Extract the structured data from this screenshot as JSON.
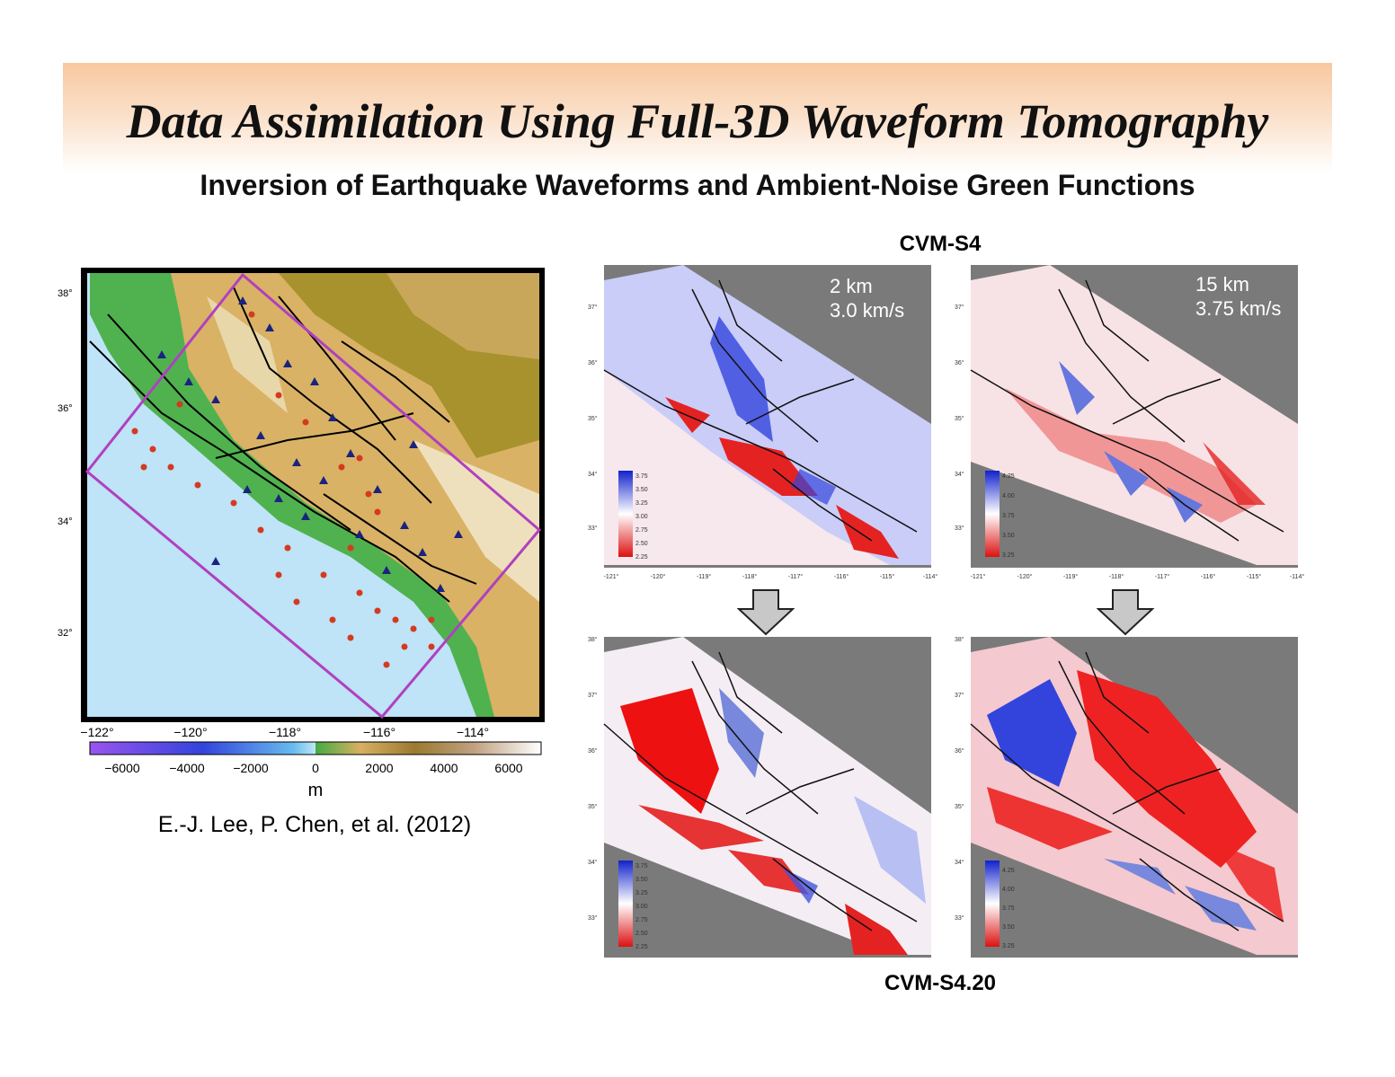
{
  "title": "Data Assimilation Using Full-3D Waveform Tomography",
  "subtitle": "Inversion of Earthquake Waveforms and Ambient-Noise Green Functions",
  "top_label": "CVM-S4",
  "bottom_label": "CVM-S4.20",
  "credit": "E.-J. Lee, P. Chen, et al. (2012)",
  "map": {
    "lat_ticks": [
      "38°",
      "36°",
      "34°",
      "32°"
    ],
    "lon_ticks": [
      "−122°",
      "−120°",
      "−118°",
      "−116°",
      "−114°"
    ],
    "colorbar_ticks": [
      "−6000",
      "−4000",
      "−2000",
      "0",
      "2000",
      "4000",
      "6000"
    ],
    "colorbar_unit": "m"
  },
  "panels": {
    "top_left": {
      "depth": "2 km",
      "velocity": "3.0 km/s",
      "scale": [
        "3.75",
        "3.50",
        "3.25",
        "3.00",
        "2.75",
        "2.50",
        "2.25"
      ]
    },
    "top_right": {
      "depth": "15 km",
      "velocity": "3.75 km/s",
      "scale": [
        "4.25",
        "4.00",
        "3.75",
        "3.50",
        "3.25"
      ]
    },
    "bottom_left": {
      "scale": [
        "3.75",
        "3.50",
        "3.25",
        "3.00",
        "2.75",
        "2.50",
        "2.25"
      ]
    },
    "bottom_right": {
      "scale": [
        "4.25",
        "4.00",
        "3.75",
        "3.50",
        "3.25"
      ]
    },
    "lat_ticks_top": [
      "37°",
      "36°",
      "35°",
      "34°",
      "33°"
    ],
    "lat_ticks_bottom": [
      "38°",
      "37°",
      "36°",
      "35°",
      "34°",
      "33°"
    ],
    "lon_ticks": [
      "-121°",
      "-120°",
      "-119°",
      "-118°",
      "-117°",
      "-116°",
      "-115°",
      "-114°"
    ]
  },
  "colors": {
    "blue": "#2233dd",
    "red": "#ee1111",
    "gray": "#7a7a7a",
    "box": "#b040c0"
  }
}
